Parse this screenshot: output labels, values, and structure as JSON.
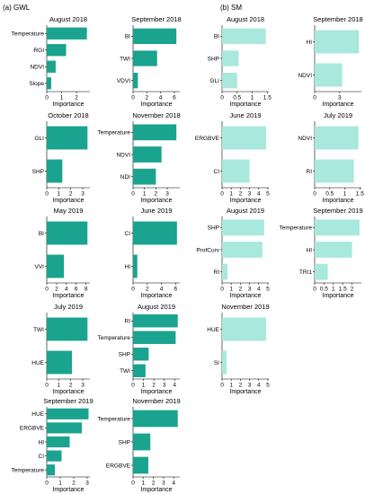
{
  "sections": {
    "gwl": "(a) GWL",
    "sm": "(b) SM"
  },
  "colors": {
    "gwl": "#1aa38f",
    "sm": "#a8e8dd",
    "axis": "#000000"
  },
  "chart_data": [
    {
      "id": "gwl-aug-2018",
      "type": "bar",
      "orientation": "horizontal",
      "title": "August 2018",
      "xlabel": "Importance",
      "categories": [
        "Temperature",
        "RGI",
        "NDVI",
        "Slope"
      ],
      "values": [
        2.7,
        1.3,
        0.6,
        0.3
      ],
      "xlim": [
        0,
        2.9
      ],
      "xticks": [
        0,
        1,
        2
      ]
    },
    {
      "id": "gwl-sep-2018",
      "type": "bar",
      "orientation": "horizontal",
      "title": "September 2018",
      "xlabel": "Importance",
      "categories": [
        "BI",
        "TWI",
        "VDVI"
      ],
      "values": [
        6.3,
        3.5,
        0.7
      ],
      "xlim": [
        0,
        6.8
      ],
      "xticks": [
        0,
        2,
        4,
        6
      ]
    },
    {
      "id": "gwl-oct-2018",
      "type": "bar",
      "orientation": "horizontal",
      "title": "October 2018",
      "xlabel": "Importance",
      "categories": [
        "GLI",
        "SHP"
      ],
      "values": [
        3.4,
        1.3
      ],
      "xlim": [
        0,
        3.6
      ],
      "xticks": [
        0,
        1,
        2,
        3
      ]
    },
    {
      "id": "gwl-nov-2018",
      "type": "bar",
      "orientation": "horizontal",
      "title": "November 2018",
      "xlabel": "Importance",
      "categories": [
        "Temperature",
        "NDVI",
        "NDI"
      ],
      "values": [
        3.8,
        2.5,
        2.0
      ],
      "xlim": [
        0,
        4.1
      ],
      "xticks": [
        0,
        1,
        2,
        3
      ]
    },
    {
      "id": "gwl-may-2019",
      "type": "bar",
      "orientation": "horizontal",
      "title": "May 2019",
      "xlabel": "Importance",
      "categories": [
        "BI",
        "VVI"
      ],
      "values": [
        8.3,
        3.5
      ],
      "xlim": [
        0,
        8.8
      ],
      "xticks": [
        0,
        2,
        4,
        6,
        8
      ]
    },
    {
      "id": "gwl-jun-2019",
      "type": "bar",
      "orientation": "horizontal",
      "title": "June 2019",
      "xlabel": "Importance",
      "categories": [
        "CI",
        "HI"
      ],
      "values": [
        6.2,
        0.6
      ],
      "xlim": [
        0,
        6.6
      ],
      "xticks": [
        0,
        2,
        4,
        6
      ]
    },
    {
      "id": "gwl-jul-2019",
      "type": "bar",
      "orientation": "horizontal",
      "title": "July 2019",
      "xlabel": "Importance",
      "categories": [
        "TWI",
        "HUE"
      ],
      "values": [
        3.4,
        2.1
      ],
      "xlim": [
        0,
        3.6
      ],
      "xticks": [
        0,
        1,
        2,
        3
      ]
    },
    {
      "id": "gwl-aug-2019",
      "type": "bar",
      "orientation": "horizontal",
      "title": "August 2019",
      "xlabel": "Importance",
      "categories": [
        "RI",
        "Temperature",
        "SHP",
        "TWI"
      ],
      "values": [
        4.3,
        4.1,
        1.5,
        1.2
      ],
      "xlim": [
        0,
        4.5
      ],
      "xticks": [
        0,
        1,
        2,
        3,
        4
      ]
    },
    {
      "id": "gwl-sep-2019",
      "type": "bar",
      "orientation": "horizontal",
      "title": "September 2019",
      "xlabel": "Importance",
      "categories": [
        "HUE",
        "ERGBVE",
        "HI",
        "CI",
        "Temperature"
      ],
      "values": [
        3.1,
        2.6,
        1.7,
        1.1,
        0.6
      ],
      "xlim": [
        0,
        3.2
      ],
      "xticks": [
        0,
        1,
        2,
        3
      ]
    },
    {
      "id": "gwl-nov-2019",
      "type": "bar",
      "orientation": "horizontal",
      "title": "November 2019",
      "xlabel": "Importance",
      "categories": [
        "Temperature",
        "SHP",
        "ERGBVE"
      ],
      "values": [
        4.4,
        1.7,
        1.5
      ],
      "xlim": [
        0,
        4.6
      ],
      "xticks": [
        0,
        1,
        2,
        3,
        4
      ]
    },
    {
      "id": "sm-aug-2018",
      "type": "bar",
      "orientation": "horizontal",
      "title": "August 2018",
      "xlabel": "Importance",
      "categories": [
        "BI",
        "SHP",
        "GLI"
      ],
      "values": [
        1.45,
        0.55,
        0.5
      ],
      "xlim": [
        0,
        1.55
      ],
      "xticks": [
        0,
        0.5,
        1,
        1.5
      ]
    },
    {
      "id": "sm-sep-2018",
      "type": "bar",
      "orientation": "horizontal",
      "title": "September 2018",
      "xlabel": "Importance",
      "categories": [
        "HI",
        "NDVI"
      ],
      "values": [
        5.3,
        3.3
      ],
      "xlim": [
        0,
        5.6
      ],
      "xticks": [
        0,
        3
      ]
    },
    {
      "id": "sm-jun-2019",
      "type": "bar",
      "orientation": "horizontal",
      "title": "June 2019",
      "xlabel": "Importance",
      "categories": [
        "ERGBVE",
        "CI"
      ],
      "values": [
        4.8,
        3.0
      ],
      "xlim": [
        0,
        5.1
      ],
      "xticks": [
        0,
        1,
        2,
        3,
        4,
        5
      ]
    },
    {
      "id": "sm-jul-2019",
      "type": "bar",
      "orientation": "horizontal",
      "title": "July 2019",
      "xlabel": "Importance",
      "categories": [
        "NDVI",
        "RI"
      ],
      "values": [
        1.45,
        1.3
      ],
      "xlim": [
        0,
        1.55
      ],
      "xticks": [
        0,
        0.5,
        1,
        1.5
      ]
    },
    {
      "id": "sm-aug-2019",
      "type": "bar",
      "orientation": "horizontal",
      "title": "August 2019",
      "xlabel": "Importance",
      "categories": [
        "SHP",
        "ProfCurv",
        "RI"
      ],
      "values": [
        4.6,
        4.4,
        0.6
      ],
      "xlim": [
        0,
        5.1
      ],
      "xticks": [
        0,
        1,
        2,
        3,
        4,
        5
      ]
    },
    {
      "id": "sm-sep-2019",
      "type": "bar",
      "orientation": "horizontal",
      "title": "September 2019",
      "xlabel": "Importance",
      "categories": [
        "Temperature",
        "HI",
        "TRI1"
      ],
      "values": [
        2.4,
        2.0,
        0.7
      ],
      "xlim": [
        0,
        2.5
      ],
      "xticks": [
        0,
        0.5,
        1,
        1.5,
        2
      ]
    },
    {
      "id": "sm-nov-2019",
      "type": "bar",
      "orientation": "horizontal",
      "title": "November 2019",
      "xlabel": "Importance",
      "categories": [
        "HUE",
        "SI"
      ],
      "values": [
        4.8,
        0.5
      ],
      "xlim": [
        0,
        5.1
      ],
      "xticks": [
        0,
        1,
        2,
        3,
        4,
        5
      ]
    }
  ]
}
